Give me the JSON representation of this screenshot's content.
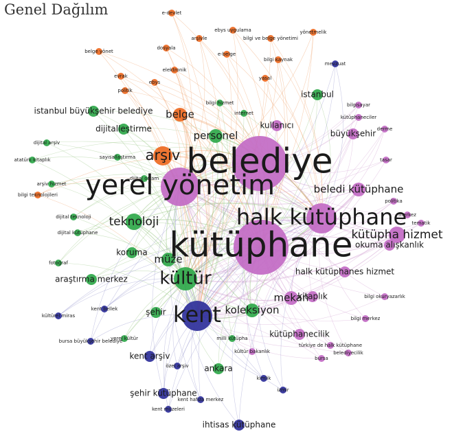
{
  "page_title": "Genel Dağılım",
  "colors": {
    "orange": "#ee6a22",
    "green": "#2fa84a",
    "purple": "#c26ac4",
    "blue": "#2e2f9a",
    "edge_orange": "#f2a56f",
    "edge_green": "#9ec989",
    "edge_purple": "#d5a8d6",
    "edge_blue": "#9a9ad0"
  },
  "nodes": [
    {
      "label": "belediye",
      "group": "purple",
      "weight": 10
    },
    {
      "label": "kütüphane",
      "group": "purple",
      "weight": 10
    },
    {
      "label": "yerel yönetim",
      "group": "purple",
      "weight": 8
    },
    {
      "label": "halk kütüphane",
      "group": "purple",
      "weight": 7
    },
    {
      "label": "kent",
      "group": "blue",
      "weight": 7
    },
    {
      "label": "kültür",
      "group": "green",
      "weight": 6
    },
    {
      "label": "arşiv",
      "group": "orange",
      "weight": 5
    },
    {
      "label": "teknoloji",
      "group": "green",
      "weight": 4
    },
    {
      "label": "kütüpha hizmet",
      "group": "purple",
      "weight": 4
    },
    {
      "label": "beledi kütüphane",
      "group": "purple",
      "weight": 3
    },
    {
      "label": "belge",
      "group": "orange",
      "weight": 3
    },
    {
      "label": "mekan",
      "group": "purple",
      "weight": 3
    },
    {
      "label": "koleksiyon",
      "group": "green",
      "weight": 3
    },
    {
      "label": "müze",
      "group": "green",
      "weight": 3
    },
    {
      "label": "personel",
      "group": "green",
      "weight": 3
    },
    {
      "label": "kent arşiv",
      "group": "blue",
      "weight": 2
    },
    {
      "label": "kullanıcı",
      "group": "purple",
      "weight": 2
    },
    {
      "label": "büyükşehir",
      "group": "purple",
      "weight": 2
    },
    {
      "label": "kütüphanecilik",
      "group": "purple",
      "weight": 2
    },
    {
      "label": "şehir",
      "group": "green",
      "weight": 2
    },
    {
      "label": "okuma alışkanlık",
      "group": "purple",
      "weight": 2
    },
    {
      "label": "araştırma merkez",
      "group": "green",
      "weight": 2
    },
    {
      "label": "dijitalleştirme",
      "group": "green",
      "weight": 2
    },
    {
      "label": "istanbul",
      "group": "green",
      "weight": 2
    },
    {
      "label": "istanbul büyükşehir belediye",
      "group": "green",
      "weight": 2
    },
    {
      "label": "ankara",
      "group": "green",
      "weight": 2
    },
    {
      "label": "şehir kütüphane",
      "group": "blue",
      "weight": 2
    },
    {
      "label": "ihtisas kütüphane",
      "group": "blue",
      "weight": 2
    },
    {
      "label": "halk kütüphanes hizmet",
      "group": "purple",
      "weight": 2
    },
    {
      "label": "kitaplık",
      "group": "purple",
      "weight": 2
    },
    {
      "label": "koruma",
      "group": "green",
      "weight": 2
    },
    {
      "label": "kent müzeleri",
      "group": "blue",
      "weight": 1
    },
    {
      "label": "kent hafıza merkez",
      "group": "blue",
      "weight": 1
    },
    {
      "label": "kent bellek",
      "group": "blue",
      "weight": 1
    },
    {
      "label": "bilgi okuryazarlık",
      "group": "purple",
      "weight": 1
    },
    {
      "label": "bilgi merkez",
      "group": "purple",
      "weight": 1
    },
    {
      "label": "bilgi hizmet",
      "group": "green",
      "weight": 1
    },
    {
      "label": "bilgi kaynak",
      "group": "orange",
      "weight": 1
    },
    {
      "label": "bilgisayar",
      "group": "purple",
      "weight": 1
    },
    {
      "label": "internet",
      "group": "green",
      "weight": 1
    },
    {
      "label": "sayısallaştırma",
      "group": "green",
      "weight": 1
    },
    {
      "label": "dijital arşiv",
      "group": "green",
      "weight": 1
    },
    {
      "label": "atatürk kitaplık",
      "group": "green",
      "weight": 1
    },
    {
      "label": "arşiv hizmet",
      "group": "green",
      "weight": 1
    },
    {
      "label": "bilgi teknolojileri",
      "group": "orange",
      "weight": 1
    },
    {
      "label": "dijital ortam",
      "group": "green",
      "weight": 1
    },
    {
      "label": "dijital teknoloji",
      "group": "green",
      "weight": 1
    },
    {
      "label": "dijital kütüphane",
      "group": "green",
      "weight": 1
    },
    {
      "label": "fotoğraf",
      "group": "green",
      "weight": 1
    },
    {
      "label": "kültürel miras",
      "group": "blue",
      "weight": 1
    },
    {
      "label": "bursa büyükşehir belediye",
      "group": "blue",
      "weight": 1
    },
    {
      "label": "yerel kültür",
      "group": "green",
      "weight": 1
    },
    {
      "label": "milli kütüpha",
      "group": "green",
      "weight": 1
    },
    {
      "label": "kültür bakanlık",
      "group": "purple",
      "weight": 1
    },
    {
      "label": "türkiye de halk kütüphane",
      "group": "purple",
      "weight": 1
    },
    {
      "label": "belediyecilik",
      "group": "purple",
      "weight": 1
    },
    {
      "label": "bursa",
      "group": "purple",
      "weight": 1
    },
    {
      "label": "özel arşiv",
      "group": "blue",
      "weight": 1
    },
    {
      "label": "kimlik",
      "group": "blue",
      "weight": 1
    },
    {
      "label": "izmir",
      "group": "blue",
      "weight": 1
    },
    {
      "label": "kütüphaneciler",
      "group": "purple",
      "weight": 1
    },
    {
      "label": "derme",
      "group": "purple",
      "weight": 1
    },
    {
      "label": "tasar",
      "group": "purple",
      "weight": 1
    },
    {
      "label": "politika",
      "group": "purple",
      "weight": 1
    },
    {
      "label": "merkez",
      "group": "purple",
      "weight": 1
    },
    {
      "label": "tematik",
      "group": "purple",
      "weight": 1
    },
    {
      "label": "e-devlet",
      "group": "orange",
      "weight": 1
    },
    {
      "label": "ebys uygulama",
      "group": "orange",
      "weight": 1
    },
    {
      "label": "arşivle",
      "group": "orange",
      "weight": 1
    },
    {
      "label": "bilgi ve belge yönetimi",
      "group": "orange",
      "weight": 1
    },
    {
      "label": "yönetmelik",
      "group": "orange",
      "weight": 1
    },
    {
      "label": "belge yönet",
      "group": "orange",
      "weight": 1
    },
    {
      "label": "dosyala",
      "group": "orange",
      "weight": 1
    },
    {
      "label": "e-belge",
      "group": "orange",
      "weight": 1
    },
    {
      "label": "elektronik",
      "group": "orange",
      "weight": 1
    },
    {
      "label": "evrak",
      "group": "orange",
      "weight": 1
    },
    {
      "label": "ebys",
      "group": "orange",
      "weight": 1
    },
    {
      "label": "yasal",
      "group": "orange",
      "weight": 1
    },
    {
      "label": "politik",
      "group": "orange",
      "weight": 1
    },
    {
      "label": "mevzuat",
      "group": "blue",
      "weight": 1
    }
  ]
}
